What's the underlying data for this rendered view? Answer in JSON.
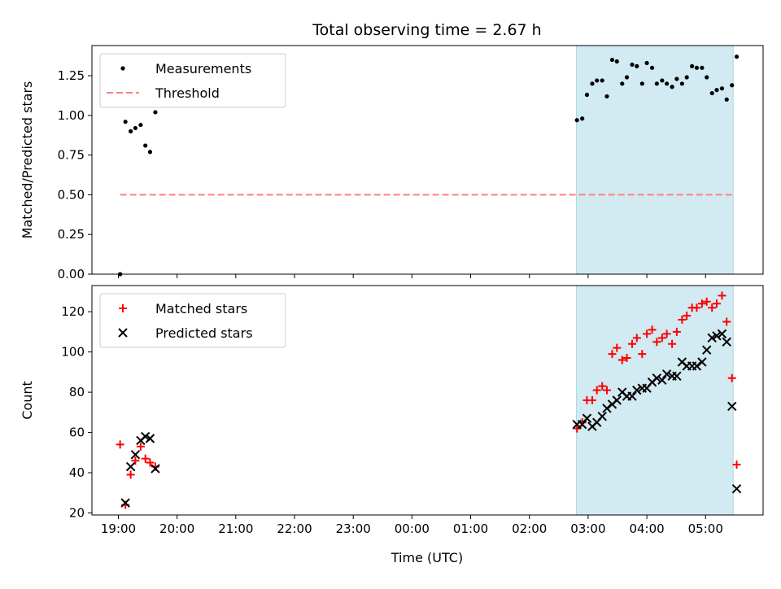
{
  "chart_data": {
    "title": "Total observing time = 2.67 h",
    "xlabel": "Time (UTC)",
    "x_ticks": [
      "19:00",
      "20:00",
      "21:00",
      "22:00",
      "23:00",
      "00:00",
      "01:00",
      "02:00",
      "03:00",
      "04:00",
      "05:00"
    ],
    "x_tick_hours": [
      19,
      20,
      21,
      22,
      23,
      24,
      25,
      26,
      27,
      28,
      29
    ],
    "xlim_hours": [
      18.55,
      29.98
    ],
    "shaded_interval_hours": [
      26.8,
      29.47
    ],
    "colors": {
      "shade": "#add8e6",
      "matched": "#ff0000",
      "predicted": "#000000",
      "threshold": "#ff7f7f",
      "measurement": "#000000"
    },
    "panels": [
      {
        "type": "scatter",
        "ylabel": "Matched/Predicted stars",
        "ylim": [
          0,
          1.44
        ],
        "y_ticks": [
          "0.00",
          "0.25",
          "0.50",
          "0.75",
          "1.00",
          "1.25"
        ],
        "y_tick_values": [
          0,
          0.25,
          0.5,
          0.75,
          1.0,
          1.25
        ],
        "legend": {
          "position": "upper-left",
          "entries": [
            "Measurements",
            "Threshold"
          ]
        },
        "threshold": {
          "y": 0.5,
          "x_range_hours": [
            19.03,
            29.47
          ]
        },
        "series": [
          {
            "name": "Measurements",
            "marker": "dot",
            "points": [
              [
                19.03,
                0.0
              ],
              [
                19.12,
                0.96
              ],
              [
                19.21,
                0.9
              ],
              [
                19.29,
                0.92
              ],
              [
                19.38,
                0.94
              ],
              [
                19.46,
                0.81
              ],
              [
                19.54,
                0.77
              ],
              [
                19.63,
                1.02
              ],
              [
                26.81,
                0.97
              ],
              [
                26.9,
                0.98
              ],
              [
                26.98,
                1.13
              ],
              [
                27.07,
                1.2
              ],
              [
                27.15,
                1.22
              ],
              [
                27.24,
                1.22
              ],
              [
                27.32,
                1.12
              ],
              [
                27.41,
                1.35
              ],
              [
                27.49,
                1.34
              ],
              [
                27.58,
                1.2
              ],
              [
                27.66,
                1.24
              ],
              [
                27.75,
                1.32
              ],
              [
                27.83,
                1.31
              ],
              [
                27.92,
                1.2
              ],
              [
                28.0,
                1.33
              ],
              [
                28.09,
                1.3
              ],
              [
                28.17,
                1.2
              ],
              [
                28.26,
                1.22
              ],
              [
                28.34,
                1.2
              ],
              [
                28.43,
                1.18
              ],
              [
                28.51,
                1.23
              ],
              [
                28.6,
                1.2
              ],
              [
                28.68,
                1.24
              ],
              [
                28.77,
                1.31
              ],
              [
                28.85,
                1.3
              ],
              [
                28.94,
                1.3
              ],
              [
                29.02,
                1.24
              ],
              [
                29.11,
                1.14
              ],
              [
                29.19,
                1.16
              ],
              [
                29.28,
                1.17
              ],
              [
                29.36,
                1.1
              ],
              [
                29.45,
                1.19
              ],
              [
                29.53,
                1.37
              ]
            ]
          }
        ]
      },
      {
        "type": "scatter",
        "ylabel": "Count",
        "ylim": [
          19,
          133
        ],
        "y_ticks": [
          "20",
          "40",
          "60",
          "80",
          "100",
          "120"
        ],
        "y_tick_values": [
          20,
          40,
          60,
          80,
          100,
          120
        ],
        "legend": {
          "position": "upper-left",
          "entries": [
            "Matched stars",
            "Predicted stars"
          ]
        },
        "series": [
          {
            "name": "Matched stars",
            "marker": "plus",
            "points": [
              [
                19.03,
                54
              ],
              [
                19.12,
                24
              ],
              [
                19.21,
                39
              ],
              [
                19.29,
                46
              ],
              [
                19.38,
                53
              ],
              [
                19.46,
                47
              ],
              [
                19.54,
                45
              ],
              [
                19.63,
                43
              ],
              [
                26.81,
                62
              ],
              [
                26.9,
                65
              ],
              [
                26.98,
                76
              ],
              [
                27.07,
                76
              ],
              [
                27.15,
                81
              ],
              [
                27.24,
                83
              ],
              [
                27.32,
                81
              ],
              [
                27.41,
                99
              ],
              [
                27.49,
                102
              ],
              [
                27.58,
                96
              ],
              [
                27.66,
                97
              ],
              [
                27.75,
                104
              ],
              [
                27.83,
                107
              ],
              [
                27.92,
                99
              ],
              [
                28.0,
                109
              ],
              [
                28.09,
                111
              ],
              [
                28.17,
                105
              ],
              [
                28.26,
                107
              ],
              [
                28.34,
                109
              ],
              [
                28.43,
                104
              ],
              [
                28.51,
                110
              ],
              [
                28.6,
                116
              ],
              [
                28.68,
                118
              ],
              [
                28.77,
                122
              ],
              [
                28.85,
                122
              ],
              [
                28.94,
                124
              ],
              [
                29.02,
                125
              ],
              [
                29.11,
                122
              ],
              [
                29.19,
                124
              ],
              [
                29.28,
                128
              ],
              [
                29.36,
                115
              ],
              [
                29.45,
                87
              ],
              [
                29.53,
                44
              ]
            ]
          },
          {
            "name": "Predicted stars",
            "marker": "x",
            "points": [
              [
                19.12,
                25
              ],
              [
                19.21,
                43
              ],
              [
                19.29,
                49
              ],
              [
                19.38,
                56
              ],
              [
                19.46,
                58
              ],
              [
                19.54,
                57
              ],
              [
                19.63,
                42
              ],
              [
                26.81,
                64
              ],
              [
                26.9,
                64
              ],
              [
                26.98,
                67
              ],
              [
                27.07,
                63
              ],
              [
                27.15,
                65
              ],
              [
                27.24,
                68
              ],
              [
                27.32,
                72
              ],
              [
                27.41,
                74
              ],
              [
                27.49,
                76
              ],
              [
                27.58,
                80
              ],
              [
                27.66,
                78
              ],
              [
                27.75,
                78
              ],
              [
                27.83,
                81
              ],
              [
                27.92,
                82
              ],
              [
                28.0,
                82
              ],
              [
                28.09,
                85
              ],
              [
                28.17,
                87
              ],
              [
                28.26,
                86
              ],
              [
                28.34,
                89
              ],
              [
                28.43,
                88
              ],
              [
                28.51,
                88
              ],
              [
                28.6,
                95
              ],
              [
                28.68,
                93
              ],
              [
                28.77,
                93
              ],
              [
                28.85,
                93
              ],
              [
                28.94,
                95
              ],
              [
                29.02,
                101
              ],
              [
                29.11,
                107
              ],
              [
                29.19,
                108
              ],
              [
                29.28,
                109
              ],
              [
                29.36,
                105
              ],
              [
                29.45,
                73
              ],
              [
                29.53,
                32
              ]
            ]
          }
        ]
      }
    ]
  }
}
